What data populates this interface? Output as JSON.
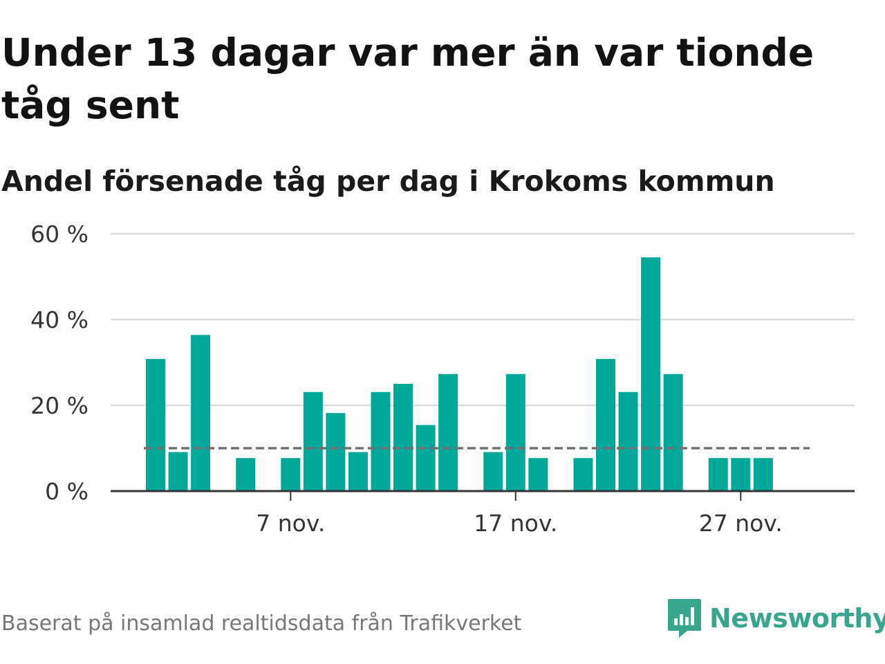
{
  "title": "Under 13 dagar var mer än var tionde tåg sent",
  "subtitle": "Andel försenade tåg per dag i Krokoms kommun",
  "footer": {
    "source": "Baserat på insamlad realtidsdata från Trafikverket",
    "brand": "Newsworthy"
  },
  "colors": {
    "bar": "#00a89a",
    "reference_line": "#707070",
    "gridline": "#dddddd",
    "axis": "#333333",
    "brand": "#38a58f"
  },
  "chart_data": {
    "type": "bar",
    "title": "Under 13 dagar var mer än var tionde tåg sent",
    "subtitle": "Andel försenade tåg per dag i Krokoms kommun",
    "xlabel": "",
    "ylabel": "",
    "x_unit": "day in November",
    "categories": [
      1,
      2,
      3,
      4,
      5,
      6,
      7,
      8,
      9,
      10,
      11,
      12,
      13,
      14,
      15,
      16,
      17,
      18,
      19,
      20,
      21,
      22,
      23,
      24,
      25,
      26,
      27,
      28,
      29,
      30
    ],
    "values": [
      30.8,
      9.1,
      36.4,
      0,
      7.7,
      0,
      7.7,
      23.1,
      18.2,
      9.1,
      23.1,
      25.0,
      15.4,
      27.3,
      0,
      9.1,
      27.3,
      7.7,
      0,
      7.7,
      30.8,
      23.1,
      54.5,
      27.3,
      0,
      7.7,
      7.7,
      7.7,
      0,
      0
    ],
    "ylim": [
      0,
      60
    ],
    "yticks": [
      0,
      20,
      40,
      60
    ],
    "ytick_labels": [
      "0 %",
      "20 %",
      "40 %",
      "60 %"
    ],
    "xticks": [
      7,
      17,
      27
    ],
    "xtick_labels": [
      "7 nov.",
      "17 nov.",
      "27 nov."
    ],
    "reference_line": {
      "value": 10,
      "style": "dashed"
    },
    "grid": true,
    "legend": "none"
  }
}
